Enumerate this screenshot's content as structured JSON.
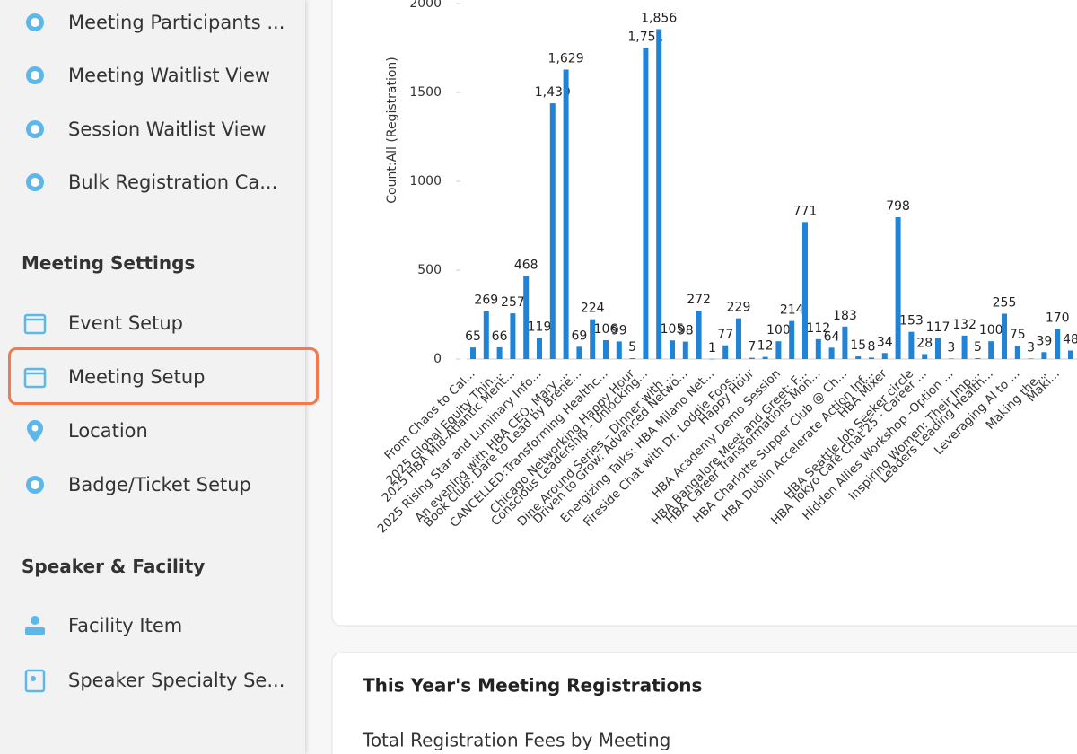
{
  "sidebar": {
    "items_top": [
      "Meeting Participants ...",
      "Meeting Waitlist View",
      "Session Waitlist View",
      "Bulk Registration Ca..."
    ],
    "sections": [
      {
        "heading": "Meeting Settings",
        "items": [
          "Event Setup",
          "Meeting Setup",
          "Location",
          "Badge/Ticket Setup"
        ]
      },
      {
        "heading": "Speaker & Facility",
        "items": [
          "Facility Item",
          "Speaker Specialty Se..."
        ]
      }
    ]
  },
  "chart_data": {
    "type": "bar",
    "y_label": "Count:All (Registration)",
    "color": "#1f84d8",
    "ylim": [
      0,
      2000
    ],
    "yticks": [
      0,
      500,
      1000,
      1500,
      2000
    ],
    "categories": [
      "From Chaos to Cal...",
      null,
      "2025 Global Equity Thin...",
      "2025 HBA Mid-Atlantic Ment...",
      null,
      "2025 Rising Star and Luminary Info...",
      null,
      "An evening with HBA CEO, Mary ...",
      "Book Club: Dare to Lead by Brene...",
      null,
      "CANCELLED:Transforming Healthc...",
      null,
      "Chicago Networking Happy Hour",
      "Conscious Leadership - Unlocking...",
      null,
      "Dine Around Series – Dinner with ...",
      "Driven to Grow: Advanced Netwo...",
      null,
      "Energizing Talks: HBA Milano Net...",
      null,
      "Fireside Chat with Dr. Loddie Foos...",
      "Happy Hour",
      null,
      "HBA Academy Demo Session",
      null,
      "HBA Bangalore Meet and Greet: F...",
      "HBA Career Transformations Mon...",
      null,
      "HBA Charlotte Supper Club @ Ch...",
      null,
      "HBA Dublin Accelerate Action Inf...",
      "HBA Mixer",
      null,
      "HBA Seattle Job Seeker circle",
      "HBA Tokyo Café Chat'25 - Career ...",
      null,
      "Hidden Allies Workshop -Option ...",
      null,
      "Inspiring Women: Their Imp...",
      "Leaders Leading Health...",
      null,
      "Leveraging AI to ...",
      null,
      "Making the...",
      "Maki...",
      null
    ],
    "values": [
      65,
      269,
      66,
      257,
      468,
      119,
      1439,
      1629,
      69,
      224,
      106,
      99,
      5,
      1751,
      1856,
      105,
      98,
      272,
      1,
      77,
      229,
      7,
      12,
      100,
      214,
      771,
      112,
      64,
      183,
      15,
      8,
      34,
      798,
      153,
      28,
      117,
      3,
      132,
      5,
      100,
      255,
      75,
      3,
      39,
      170,
      48
    ],
    "value_labels": [
      "65",
      "269",
      "66",
      "257",
      "468",
      "119",
      "1,439",
      "1,629",
      "69",
      "224",
      "106",
      "99",
      "5",
      "1,751",
      "1,856",
      "105",
      "98",
      "272",
      "1",
      "77",
      "229",
      "7",
      "12",
      "100",
      "214",
      "771",
      "112",
      "64",
      "183",
      "15",
      "8",
      "34",
      "798",
      "153",
      "28",
      "117",
      "3",
      "132",
      "5",
      "100",
      "255",
      "75",
      "3",
      "39",
      "170",
      "48"
    ]
  },
  "card": {
    "title": "This Year's Meeting Registrations",
    "subtitle": "Total Registration Fees by Meeting"
  }
}
